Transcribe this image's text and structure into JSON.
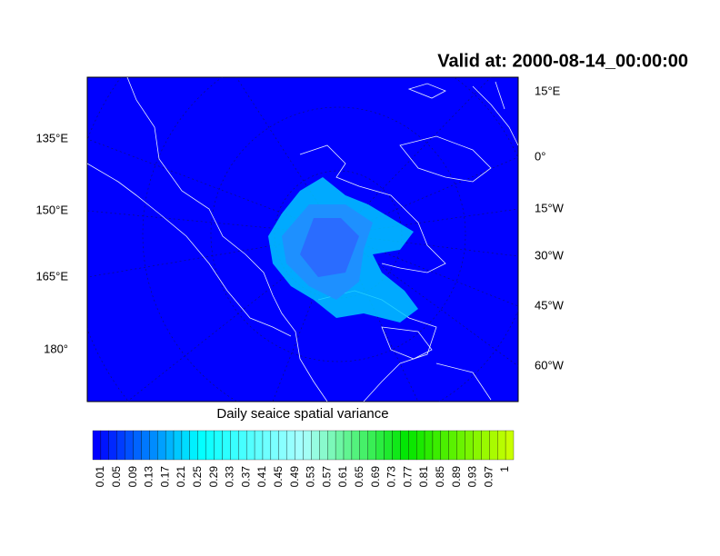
{
  "title": "Valid at: 2000-08-14_00:00:00",
  "left_lon_labels": [
    "135°E",
    "150°E",
    "165°E",
    "180°"
  ],
  "right_lon_labels": [
    "15°E",
    "0°",
    "15°W",
    "30°W",
    "45°W",
    "60°W"
  ],
  "subtitle": "Daily seaice spatial variance",
  "colorbar_labels": [
    "0.01",
    "0.05",
    "0.09",
    "0.13",
    "0.17",
    "0.21",
    "0.25",
    "0.29",
    "0.33",
    "0.37",
    "0.41",
    "0.45",
    "0.49",
    "0.53",
    "0.57",
    "0.61",
    "0.65",
    "0.69",
    "0.73",
    "0.77",
    "0.81",
    "0.85",
    "0.89",
    "0.93",
    "0.97",
    "1"
  ]
}
